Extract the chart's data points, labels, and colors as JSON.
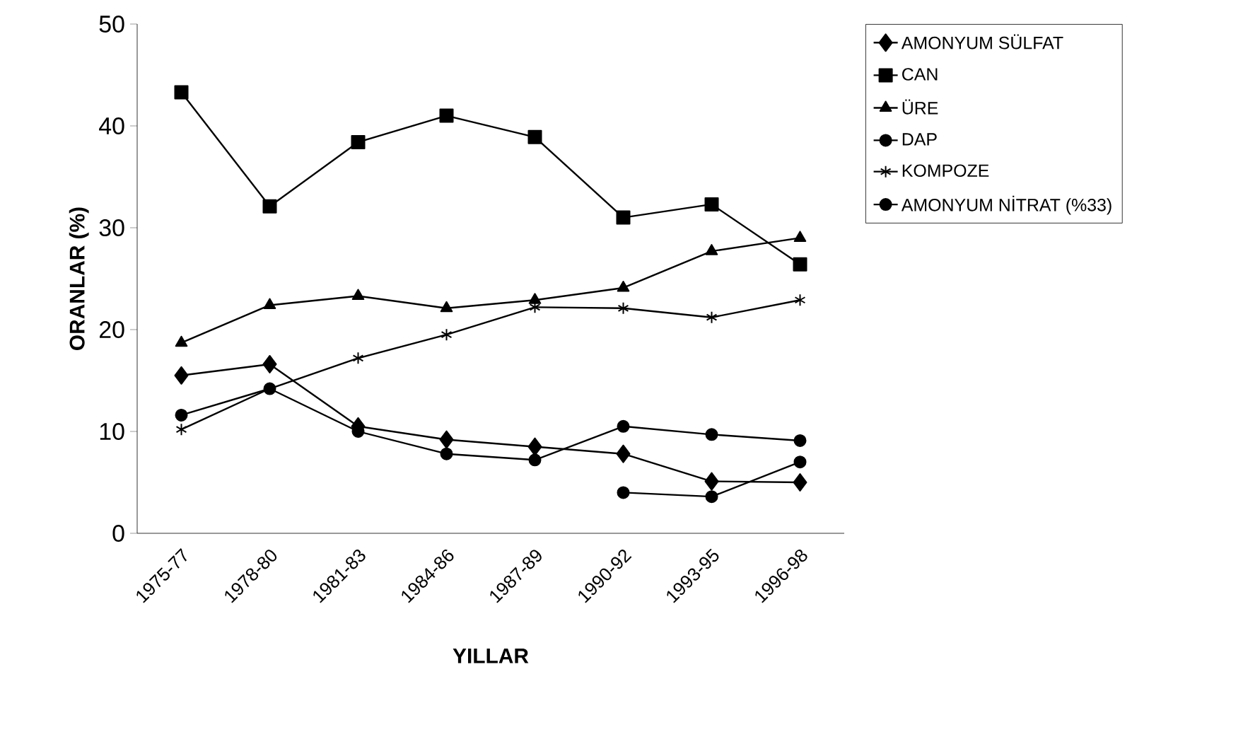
{
  "chart_data": {
    "type": "line",
    "xlabel": "YILLAR",
    "ylabel": "ORANLAR (%)",
    "categories": [
      "1975-77",
      "1978-80",
      "1981-83",
      "1984-86",
      "1987-89",
      "1990-92",
      "1993-95",
      "1996-98"
    ],
    "ylim": [
      0,
      50
    ],
    "yticks": [
      0,
      10,
      20,
      30,
      40,
      50
    ],
    "grid": false,
    "legend": "right",
    "line_style": "solid",
    "series": [
      {
        "name": "AMONYUM SÜLFAT",
        "color": "#000000",
        "marker": "diamond",
        "values": [
          15.5,
          16.6,
          10.5,
          9.2,
          8.5,
          7.8,
          5.1,
          5.0
        ]
      },
      {
        "name": "CAN",
        "color": "#000000",
        "marker": "square",
        "values": [
          43.3,
          32.1,
          38.4,
          41.0,
          38.9,
          31.0,
          32.3,
          26.4
        ]
      },
      {
        "name": "ÜRE",
        "color": "#000000",
        "marker": "triangle",
        "values": [
          18.7,
          22.4,
          23.3,
          22.1,
          22.9,
          24.1,
          27.7,
          29.0
        ]
      },
      {
        "name": "DAP",
        "color": "#000000",
        "marker": "circle",
        "values": [
          11.6,
          14.2,
          10.0,
          7.8,
          7.2,
          10.5,
          9.7,
          9.1
        ]
      },
      {
        "name": "KOMPOZE",
        "color": "#000000",
        "marker": "cross",
        "values": [
          10.2,
          14.2,
          17.2,
          19.5,
          22.2,
          22.1,
          21.2,
          22.9
        ]
      },
      {
        "name": "AMONYUM NİTRAT (%33)",
        "color": "#000000",
        "marker": "circle",
        "values": [
          null,
          null,
          null,
          null,
          null,
          4.0,
          3.6,
          7.0
        ]
      }
    ]
  }
}
